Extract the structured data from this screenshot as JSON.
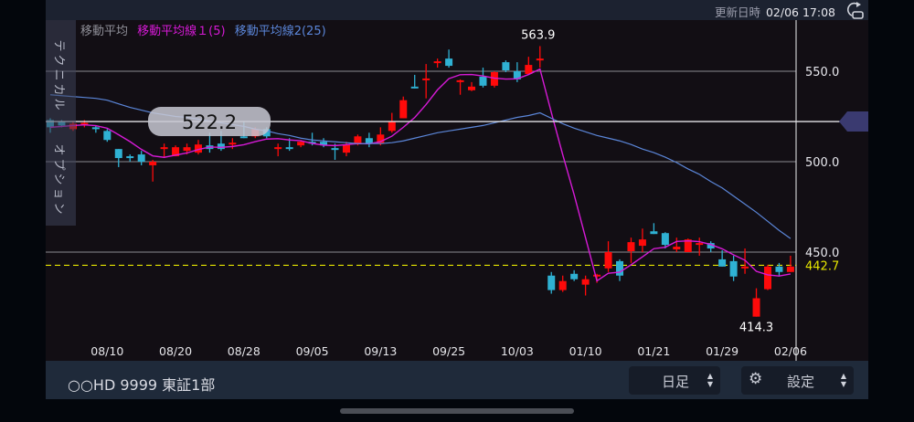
{
  "status": {
    "updated_label": "更新日時",
    "updated_value": "02/06 17:08",
    "refresh_icon": "refresh-icon"
  },
  "legend": {
    "title": "移動平均",
    "ma1": "移動平均線１(5)",
    "ma2": "移動平均線2(25)"
  },
  "sidebar": {
    "technical": "テクニカル",
    "option": "オプション"
  },
  "footer": {
    "symbol": "○○HD 9999 東証1部",
    "period": "日足",
    "settings": "設定"
  },
  "colors": {
    "up": "#ff0a0a",
    "down": "#2fb1d3",
    "ma1": "#d61ad6",
    "ma2": "#5b86d9",
    "current": "#e6e600",
    "crosshair_marker": "#3a3a70"
  },
  "chart_data": {
    "type": "candlestick",
    "y_ticks": [
      "550.0",
      "500.0",
      "450.0"
    ],
    "ylim": [
      405,
      575
    ],
    "x_tick_labels": [
      {
        "index": 5,
        "label": "08/10"
      },
      {
        "index": 11,
        "label": "08/20"
      },
      {
        "index": 17,
        "label": "08/28"
      },
      {
        "index": 23,
        "label": "09/05"
      },
      {
        "index": 29,
        "label": "09/13"
      },
      {
        "index": 35,
        "label": "09/25"
      },
      {
        "index": 41,
        "label": "10/03"
      },
      {
        "index": 47,
        "label": "01/10"
      },
      {
        "index": 53,
        "label": "01/21"
      },
      {
        "index": 59,
        "label": "01/29"
      },
      {
        "index": 65,
        "label": "02/06"
      }
    ],
    "crosshair_value": "522.2",
    "crosshair_price": 522.2,
    "current_value": "442.7",
    "current_price": 442.7,
    "high_label": "563.9",
    "low_label": "414.3",
    "grid": true,
    "ohlc": [
      [
        523,
        524,
        516,
        519
      ],
      [
        522,
        523,
        519,
        520
      ],
      [
        518,
        522,
        517,
        521
      ],
      [
        521,
        523,
        519,
        521.5
      ],
      [
        519,
        520,
        516,
        518
      ],
      [
        517,
        518,
        511,
        512
      ],
      [
        507,
        507,
        497,
        502
      ],
      [
        503,
        504,
        500,
        502
      ],
      [
        504,
        506,
        498,
        500
      ],
      [
        498,
        501,
        489,
        500
      ],
      [
        507,
        510,
        502,
        508
      ],
      [
        503,
        509,
        503,
        508
      ],
      [
        506,
        510,
        504,
        508
      ],
      [
        505,
        512,
        504,
        509.5
      ],
      [
        509,
        516,
        505,
        507
      ],
      [
        510,
        517,
        506,
        507
      ],
      [
        510,
        513,
        507,
        510.5
      ],
      [
        514,
        522,
        513,
        513
      ],
      [
        514,
        519,
        513,
        518
      ],
      [
        518,
        519,
        513,
        514
      ],
      [
        507,
        510,
        503,
        508
      ],
      [
        508,
        513,
        506,
        507
      ],
      [
        509,
        512,
        508,
        511
      ],
      [
        511,
        516,
        509,
        510.5
      ],
      [
        511,
        513,
        508,
        509
      ],
      [
        507.5,
        510,
        501,
        507
      ],
      [
        505,
        511,
        503,
        509.5
      ],
      [
        510,
        515,
        509,
        514
      ],
      [
        513,
        516,
        508,
        510
      ],
      [
        510,
        519,
        509,
        515
      ],
      [
        517,
        527,
        516,
        522
      ],
      [
        524,
        536,
        524,
        534
      ],
      [
        541.5,
        548,
        540.5,
        541
      ],
      [
        545,
        554,
        535,
        546
      ],
      [
        554.5,
        557,
        552,
        555.5
      ],
      [
        557,
        562,
        552,
        553
      ],
      [
        545,
        545.5,
        537,
        545
      ],
      [
        539.5,
        544,
        539,
        541.5
      ],
      [
        547,
        552,
        541,
        542
      ],
      [
        542,
        550,
        541,
        549.5
      ],
      [
        555,
        556,
        549.5,
        550.5
      ],
      [
        550,
        555,
        544,
        545.5
      ],
      [
        548.5,
        558,
        548,
        553.5
      ],
      [
        557,
        563.9,
        552,
        557
      ],
      [
        437,
        439,
        427,
        429
      ],
      [
        429,
        437,
        428,
        434
      ],
      [
        438,
        440,
        434,
        435
      ],
      [
        432,
        437,
        426,
        435
      ],
      [
        437,
        438,
        433,
        437.5
      ],
      [
        441,
        456,
        439,
        450
      ],
      [
        445,
        446,
        434,
        437
      ],
      [
        450.5,
        458,
        444,
        455.5
      ],
      [
        453.5,
        463,
        450,
        457
      ],
      [
        461.5,
        466,
        460,
        460
      ],
      [
        460.5,
        461,
        452,
        454
      ],
      [
        451.5,
        458,
        450,
        453
      ],
      [
        450,
        457.5,
        450,
        457
      ],
      [
        454.5,
        458,
        448,
        455
      ],
      [
        455,
        456,
        450,
        452
      ],
      [
        446,
        451,
        442,
        442
      ],
      [
        445,
        448,
        434,
        436.5
      ],
      [
        442,
        452,
        438,
        442
      ],
      [
        414.3,
        430,
        414.3,
        424.5
      ],
      [
        429.5,
        443,
        429,
        442
      ],
      [
        442,
        444,
        436.5,
        439
      ],
      [
        439,
        448,
        439,
        442
      ]
    ],
    "ma25": [
      537,
      536.5,
      536,
      535.5,
      535,
      534,
      532,
      530,
      528.5,
      527,
      526,
      525,
      524.5,
      523.5,
      522.5,
      521.5,
      520.5,
      519.5,
      518,
      517,
      515.5,
      514.5,
      513,
      512,
      511.5,
      511,
      510.5,
      510,
      510,
      510,
      510.5,
      511.5,
      513,
      514.5,
      516,
      517,
      518,
      519,
      520,
      521.5,
      523,
      524.5,
      525.5,
      527,
      524,
      521,
      518.5,
      516.5,
      514.5,
      513,
      511.5,
      509.5,
      507,
      505,
      502.5,
      499.5,
      496,
      493,
      489,
      485.5,
      481,
      476.5,
      472,
      467,
      462,
      457.5
    ]
  }
}
